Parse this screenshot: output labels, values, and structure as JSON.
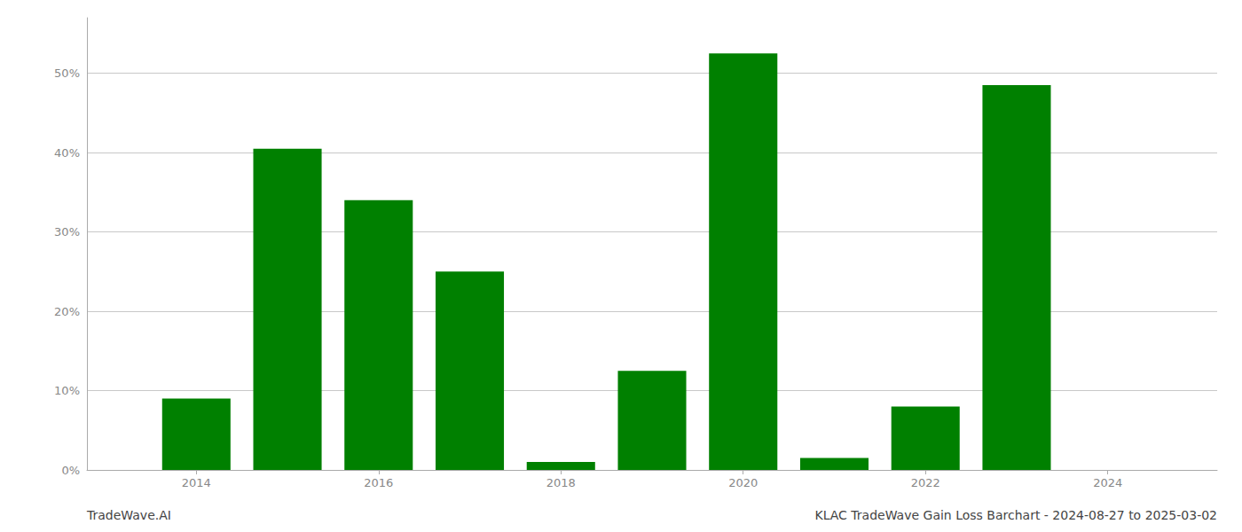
{
  "chart_data": {
    "type": "bar",
    "x": [
      2014,
      2015,
      2016,
      2017,
      2018,
      2019,
      2020,
      2021,
      2022,
      2023,
      2024
    ],
    "values": [
      9.0,
      40.5,
      34.0,
      25.0,
      1.0,
      12.5,
      52.5,
      1.5,
      8.0,
      48.5,
      0.0
    ],
    "color": "#008000",
    "xlim": [
      2012.8,
      2025.2
    ],
    "xticks": [
      2014,
      2016,
      2018,
      2020,
      2022,
      2024
    ],
    "ylim": [
      0,
      57
    ],
    "yticks": [
      {
        "value": 0,
        "label": "0%"
      },
      {
        "value": 10,
        "label": "10%"
      },
      {
        "value": 20,
        "label": "20%"
      },
      {
        "value": 30,
        "label": "30%"
      },
      {
        "value": 40,
        "label": "40%"
      },
      {
        "value": 50,
        "label": "50%"
      }
    ],
    "grid": true,
    "annotations": [
      "TradeWave.AI",
      "KLAC TradeWave Gain Loss Barchart - 2024-08-27 to 2025-03-02"
    ]
  }
}
